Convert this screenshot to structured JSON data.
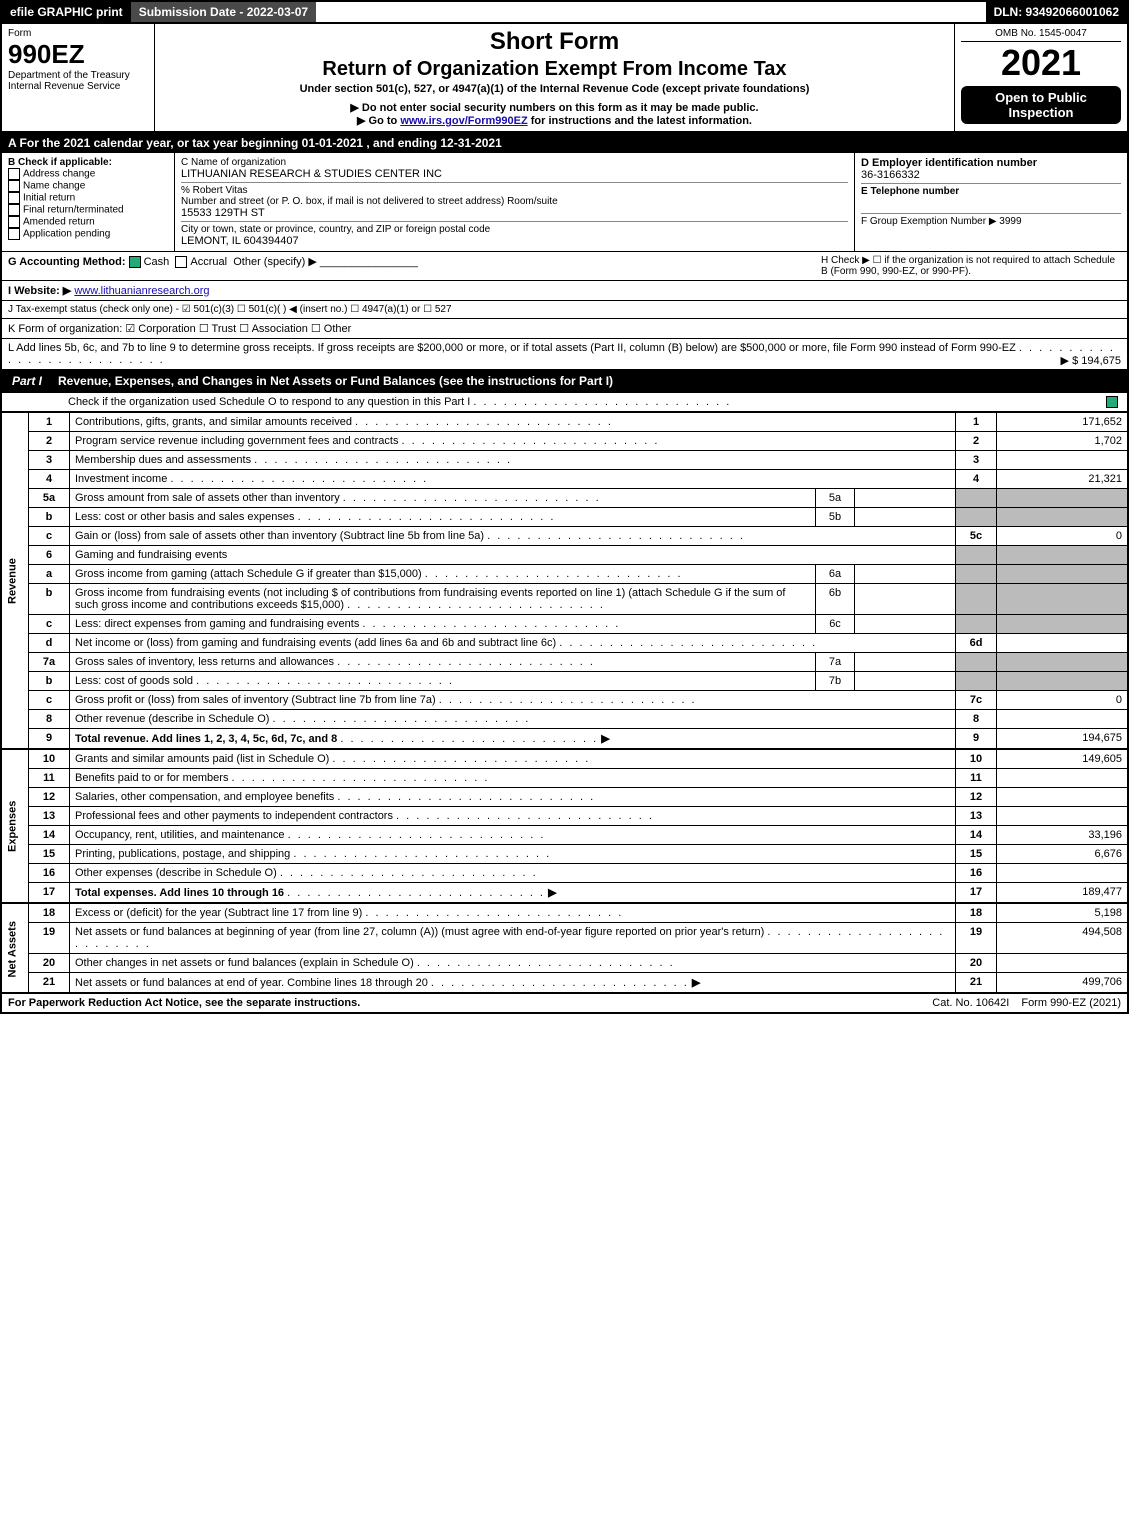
{
  "topbar": {
    "efile": "efile GRAPHIC print",
    "subdate_label": "Submission Date - 2022-03-07",
    "dln": "DLN: 93492066001062"
  },
  "header": {
    "form_word": "Form",
    "form_no": "990EZ",
    "dept": "Department of the Treasury",
    "irs": "Internal Revenue Service",
    "short": "Short Form",
    "title": "Return of Organization Exempt From Income Tax",
    "under": "Under section 501(c), 527, or 4947(a)(1) of the Internal Revenue Code (except private foundations)",
    "donot": "▶ Do not enter social security numbers on this form as it may be made public.",
    "goto_pre": "▶ Go to ",
    "goto_link": "www.irs.gov/Form990EZ",
    "goto_post": " for instructions and the latest information.",
    "omb": "OMB No. 1545-0047",
    "year": "2021",
    "open": "Open to Public Inspection"
  },
  "row_a": "A  For the 2021 calendar year, or tax year beginning 01-01-2021 , and ending 12-31-2021",
  "col_b": {
    "title": "B  Check if applicable:",
    "items": [
      "Address change",
      "Name change",
      "Initial return",
      "Final return/terminated",
      "Amended return",
      "Application pending"
    ]
  },
  "col_c": {
    "label": "C Name of organization",
    "name": "LITHUANIAN RESEARCH & STUDIES CENTER INC",
    "care": "% Robert Vitas",
    "addr_label": "Number and street (or P. O. box, if mail is not delivered to street address)      Room/suite",
    "addr": "15533 129TH ST",
    "city_label": "City or town, state or province, country, and ZIP or foreign postal code",
    "city": "LEMONT, IL  604394407"
  },
  "col_de": {
    "d_label": "D Employer identification number",
    "ein": "36-3166332",
    "e_label": "E Telephone number",
    "f_label": "F Group Exemption Number  ▶ 3999"
  },
  "row_g": {
    "label": "G Accounting Method:",
    "cash": "Cash",
    "accrual": "Accrual",
    "other": "Other (specify) ▶",
    "h": "H  Check ▶  ☐  if the organization is not required to attach Schedule B (Form 990, 990-EZ, or 990-PF)."
  },
  "row_i": {
    "label": "I Website: ▶",
    "site": "www.lithuanianresearch.org"
  },
  "row_j": "J Tax-exempt status (check only one) - ☑ 501(c)(3)  ☐ 501(c)(  ) ◀ (insert no.)  ☐ 4947(a)(1) or  ☐ 527",
  "row_k": "K Form of organization:  ☑ Corporation  ☐ Trust  ☐ Association  ☐ Other",
  "row_l": {
    "text": "L Add lines 5b, 6c, and 7b to line 9 to determine gross receipts. If gross receipts are $200,000 or more, or if total assets (Part II, column (B) below) are $500,000 or more, file Form 990 instead of Form 990-EZ",
    "amount": "▶ $ 194,675"
  },
  "part1": {
    "tab": "Part I",
    "title": "Revenue, Expenses, and Changes in Net Assets or Fund Balances (see the instructions for Part I)",
    "check": "Check if the organization used Schedule O to respond to any question in this Part I",
    "vlabels": {
      "rev": "Revenue",
      "exp": "Expenses",
      "na": "Net Assets"
    }
  },
  "lines": [
    {
      "n": "1",
      "d": "Contributions, gifts, grants, and similar amounts received",
      "r": "1",
      "a": "171,652"
    },
    {
      "n": "2",
      "d": "Program service revenue including government fees and contracts",
      "r": "2",
      "a": "1,702"
    },
    {
      "n": "3",
      "d": "Membership dues and assessments",
      "r": "3",
      "a": ""
    },
    {
      "n": "4",
      "d": "Investment income",
      "r": "4",
      "a": "21,321"
    },
    {
      "n": "5a",
      "d": "Gross amount from sale of assets other than inventory",
      "sn": "5a",
      "sv": "",
      "grey": true
    },
    {
      "n": "b",
      "d": "Less: cost or other basis and sales expenses",
      "sn": "5b",
      "sv": "",
      "grey": true
    },
    {
      "n": "c",
      "d": "Gain or (loss) from sale of assets other than inventory (Subtract line 5b from line 5a)",
      "r": "5c",
      "a": "0"
    },
    {
      "n": "6",
      "d": "Gaming and fundraising events",
      "grey": true
    },
    {
      "n": "a",
      "d": "Gross income from gaming (attach Schedule G if greater than $15,000)",
      "sn": "6a",
      "sv": "",
      "grey": true
    },
    {
      "n": "b",
      "d": "Gross income from fundraising events (not including $                    of contributions from fundraising events reported on line 1) (attach Schedule G if the sum of such gross income and contributions exceeds $15,000)",
      "sn": "6b",
      "sv": "",
      "grey": true
    },
    {
      "n": "c",
      "d": "Less: direct expenses from gaming and fundraising events",
      "sn": "6c",
      "sv": "",
      "grey": true
    },
    {
      "n": "d",
      "d": "Net income or (loss) from gaming and fundraising events (add lines 6a and 6b and subtract line 6c)",
      "r": "6d",
      "a": ""
    },
    {
      "n": "7a",
      "d": "Gross sales of inventory, less returns and allowances",
      "sn": "7a",
      "sv": "",
      "grey": true
    },
    {
      "n": "b",
      "d": "Less: cost of goods sold",
      "sn": "7b",
      "sv": "",
      "grey": true
    },
    {
      "n": "c",
      "d": "Gross profit or (loss) from sales of inventory (Subtract line 7b from line 7a)",
      "r": "7c",
      "a": "0"
    },
    {
      "n": "8",
      "d": "Other revenue (describe in Schedule O)",
      "r": "8",
      "a": ""
    },
    {
      "n": "9",
      "d": "Total revenue. Add lines 1, 2, 3, 4, 5c, 6d, 7c, and 8",
      "r": "9",
      "a": "194,675",
      "bold": true,
      "arrow": true
    }
  ],
  "exp_lines": [
    {
      "n": "10",
      "d": "Grants and similar amounts paid (list in Schedule O)",
      "r": "10",
      "a": "149,605"
    },
    {
      "n": "11",
      "d": "Benefits paid to or for members",
      "r": "11",
      "a": ""
    },
    {
      "n": "12",
      "d": "Salaries, other compensation, and employee benefits",
      "r": "12",
      "a": ""
    },
    {
      "n": "13",
      "d": "Professional fees and other payments to independent contractors",
      "r": "13",
      "a": ""
    },
    {
      "n": "14",
      "d": "Occupancy, rent, utilities, and maintenance",
      "r": "14",
      "a": "33,196"
    },
    {
      "n": "15",
      "d": "Printing, publications, postage, and shipping",
      "r": "15",
      "a": "6,676"
    },
    {
      "n": "16",
      "d": "Other expenses (describe in Schedule O)",
      "r": "16",
      "a": ""
    },
    {
      "n": "17",
      "d": "Total expenses. Add lines 10 through 16",
      "r": "17",
      "a": "189,477",
      "bold": true,
      "arrow": true
    }
  ],
  "na_lines": [
    {
      "n": "18",
      "d": "Excess or (deficit) for the year (Subtract line 17 from line 9)",
      "r": "18",
      "a": "5,198"
    },
    {
      "n": "19",
      "d": "Net assets or fund balances at beginning of year (from line 27, column (A)) (must agree with end-of-year figure reported on prior year's return)",
      "r": "19",
      "a": "494,508"
    },
    {
      "n": "20",
      "d": "Other changes in net assets or fund balances (explain in Schedule O)",
      "r": "20",
      "a": ""
    },
    {
      "n": "21",
      "d": "Net assets or fund balances at end of year. Combine lines 18 through 20",
      "r": "21",
      "a": "499,706",
      "arrow": true
    }
  ],
  "footer": {
    "pra": "For Paperwork Reduction Act Notice, see the separate instructions.",
    "cat": "Cat. No. 10642I",
    "form": "Form 990-EZ (2021)"
  }
}
